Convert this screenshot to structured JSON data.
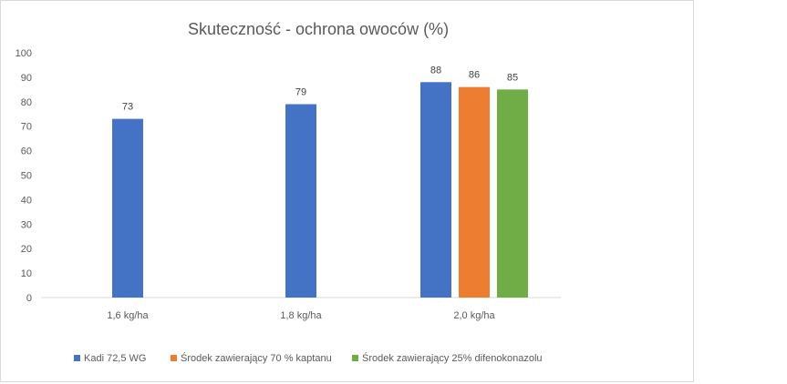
{
  "chart_data": {
    "type": "bar",
    "title": "Skuteczność  - ochrona owoców (%)",
    "xlabel": "",
    "ylabel": "",
    "categories": [
      "1,6 kg/ha",
      "1,8 kg/ha",
      "2,0 kg/ha"
    ],
    "ylim": [
      0,
      100
    ],
    "yticks": [
      0,
      10,
      20,
      30,
      40,
      50,
      60,
      70,
      80,
      90,
      100
    ],
    "grid": false,
    "legend_position": "bottom",
    "series": [
      {
        "name": "Kadi 72,5 WG",
        "color": "#4472c4",
        "values": [
          73,
          79,
          88
        ]
      },
      {
        "name": "Środek zawierający 70 % kaptanu",
        "color": "#ed7d31",
        "values": [
          null,
          null,
          86
        ]
      },
      {
        "name": "Środek zawierający 25% difenokonazolu",
        "color": "#70ad47",
        "values": [
          null,
          null,
          85
        ]
      }
    ]
  }
}
